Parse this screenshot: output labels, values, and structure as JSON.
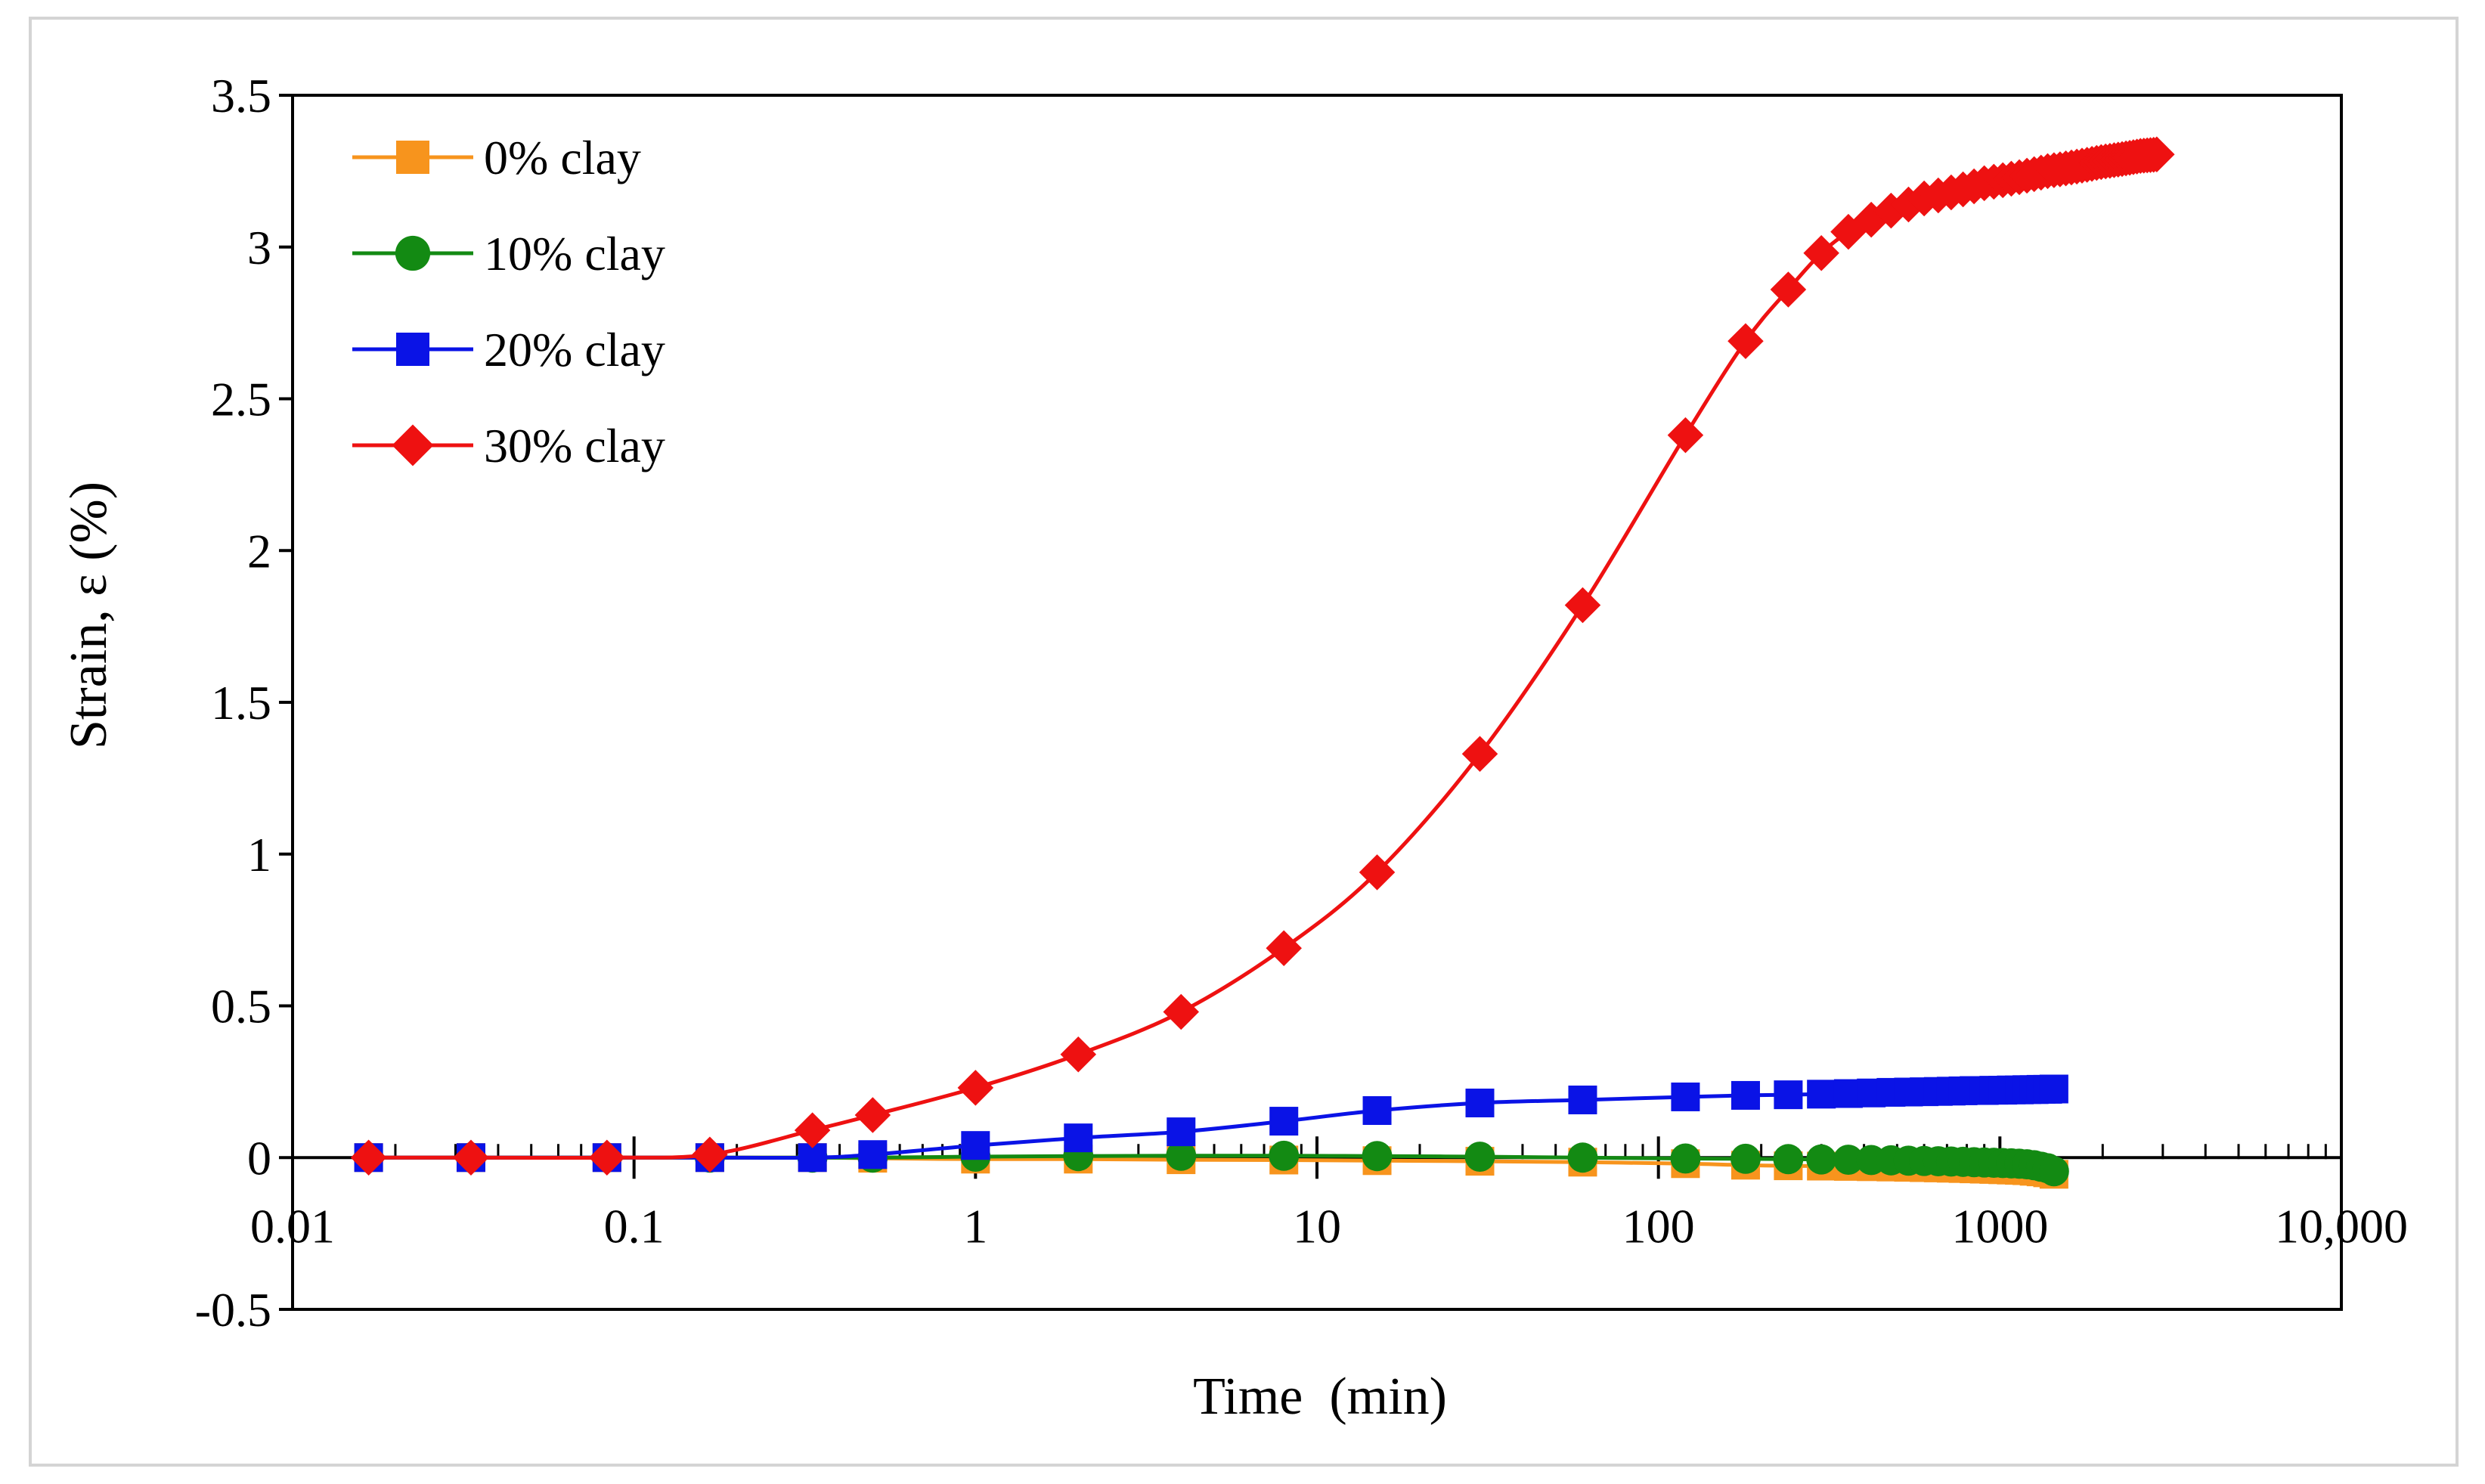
{
  "chart_data": {
    "type": "line",
    "title": "",
    "xlabel": "Time  (min)",
    "ylabel": "Strain, ε (%)",
    "x_scale": "log",
    "xlim": [
      0.01,
      10000
    ],
    "ylim": [
      -0.5,
      3.5
    ],
    "x_tick_values": [
      0.01,
      0.1,
      1,
      10,
      100,
      1000,
      10000
    ],
    "x_tick_labels": [
      "0.01",
      "0.1",
      "1",
      "10",
      "100",
      "1000",
      "10,000"
    ],
    "y_tick_values": [
      -0.5,
      0,
      0.5,
      1,
      1.5,
      2,
      2.5,
      3,
      3.5
    ],
    "y_tick_labels": [
      "-0.5",
      "0",
      "0.5",
      "1",
      "1.5",
      "2",
      "2.5",
      "3",
      "3.5"
    ],
    "legend_position": "top-left",
    "series": [
      {
        "name": "0% clay",
        "color": "#f7941d",
        "marker": "square",
        "x": [
          0.0167,
          0.0333,
          0.0833,
          0.1667,
          0.333,
          0.5,
          1,
          2,
          4,
          8,
          15,
          30,
          60,
          120,
          180,
          240,
          300,
          360,
          420,
          480,
          540,
          600,
          660,
          720,
          780,
          840,
          900,
          960,
          1020,
          1080,
          1140,
          1200,
          1260,
          1320,
          1380,
          1440
        ],
        "y": [
          0,
          0,
          0,
          0,
          0,
          -0.002,
          -0.005,
          -0.005,
          -0.007,
          -0.008,
          -0.01,
          -0.012,
          -0.015,
          -0.02,
          -0.025,
          -0.027,
          -0.028,
          -0.029,
          -0.03,
          -0.031,
          -0.032,
          -0.033,
          -0.034,
          -0.035,
          -0.036,
          -0.037,
          -0.038,
          -0.039,
          -0.04,
          -0.041,
          -0.042,
          -0.043,
          -0.045,
          -0.047,
          -0.05,
          -0.055
        ]
      },
      {
        "name": "10% clay",
        "color": "#138a13",
        "marker": "circle",
        "x": [
          0.0167,
          0.0333,
          0.0833,
          0.1667,
          0.333,
          0.5,
          1,
          2,
          4,
          8,
          15,
          30,
          60,
          120,
          180,
          240,
          300,
          360,
          420,
          480,
          540,
          600,
          660,
          720,
          780,
          840,
          900,
          960,
          1020,
          1080,
          1140,
          1200,
          1260,
          1320,
          1380,
          1440
        ],
        "y": [
          0,
          0,
          0,
          0,
          0,
          0,
          0.003,
          0.005,
          0.006,
          0.006,
          0.005,
          0.003,
          0.0,
          -0.003,
          -0.004,
          -0.005,
          -0.006,
          -0.007,
          -0.008,
          -0.009,
          -0.01,
          -0.011,
          -0.012,
          -0.013,
          -0.014,
          -0.015,
          -0.016,
          -0.017,
          -0.018,
          -0.019,
          -0.02,
          -0.022,
          -0.025,
          -0.03,
          -0.035,
          -0.045
        ]
      },
      {
        "name": "20% clay",
        "color": "#0a13e6",
        "marker": "square",
        "x": [
          0.0167,
          0.0333,
          0.0833,
          0.1667,
          0.333,
          0.5,
          1,
          2,
          4,
          8,
          15,
          30,
          60,
          120,
          180,
          240,
          300,
          360,
          420,
          480,
          540,
          600,
          660,
          720,
          780,
          840,
          900,
          960,
          1020,
          1080,
          1140,
          1200,
          1260,
          1320,
          1380,
          1440
        ],
        "y": [
          0,
          0,
          0,
          0,
          0,
          0.01,
          0.04,
          0.065,
          0.085,
          0.12,
          0.155,
          0.18,
          0.19,
          0.2,
          0.205,
          0.207,
          0.209,
          0.211,
          0.213,
          0.215,
          0.216,
          0.217,
          0.218,
          0.219,
          0.22,
          0.221,
          0.221,
          0.222,
          0.222,
          0.223,
          0.223,
          0.224,
          0.224,
          0.225,
          0.225,
          0.226
        ]
      },
      {
        "name": "30% clay",
        "color": "#ee1111",
        "marker": "diamond",
        "x": [
          0.0167,
          0.0333,
          0.0833,
          0.1667,
          0.333,
          0.5,
          1,
          2,
          4,
          8,
          15,
          30,
          60,
          120,
          180,
          240,
          300,
          360,
          420,
          480,
          540,
          600,
          660,
          720,
          780,
          840,
          900,
          960,
          1020,
          1080,
          1140,
          1200,
          1260,
          1320,
          1380,
          1440,
          1500,
          1560,
          1620,
          1680,
          1740,
          1800,
          1860,
          1920,
          1980,
          2040,
          2100,
          2160,
          2220,
          2280,
          2340,
          2400,
          2460,
          2520,
          2580,
          2640,
          2700,
          2760,
          2820,
          2880
        ],
        "y": [
          0,
          0,
          0,
          0.01,
          0.09,
          0.14,
          0.23,
          0.34,
          0.48,
          0.69,
          0.94,
          1.33,
          1.82,
          2.38,
          2.69,
          2.86,
          2.98,
          3.05,
          3.09,
          3.12,
          3.14,
          3.16,
          3.17,
          3.18,
          3.19,
          3.2,
          3.21,
          3.215,
          3.22,
          3.225,
          3.23,
          3.235,
          3.24,
          3.245,
          3.25,
          3.253,
          3.256,
          3.259,
          3.262,
          3.265,
          3.268,
          3.271,
          3.274,
          3.277,
          3.28,
          3.282,
          3.284,
          3.286,
          3.288,
          3.29,
          3.292,
          3.294,
          3.296,
          3.298,
          3.3,
          3.301,
          3.302,
          3.303,
          3.304,
          3.305
        ]
      }
    ]
  }
}
